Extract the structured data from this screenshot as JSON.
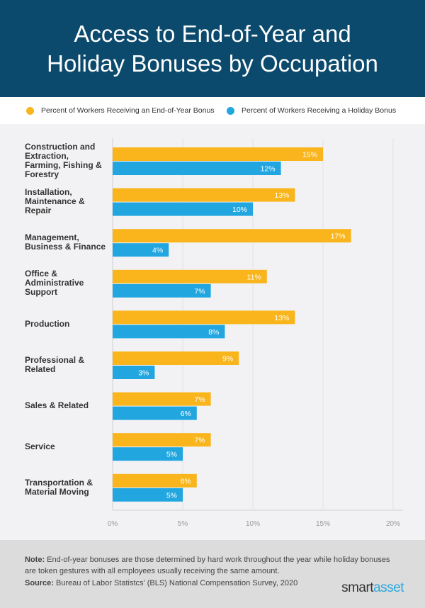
{
  "header": {
    "title_line1": "Access to End-of-Year and",
    "title_line2": "Holiday Bonuses by Occupation"
  },
  "colors": {
    "end_of_year": "#f9b51b",
    "holiday": "#21a6e0",
    "header_bg": "#0b4a6d"
  },
  "chart_data": {
    "type": "bar",
    "orientation": "horizontal",
    "categories": [
      "Construction and Extraction, Farming, Fishing & Forestry",
      "Installation, Maintenance & Repair",
      "Management, Business & Finance",
      "Office & Administrative Support",
      "Production",
      "Professional & Related",
      "Sales & Related",
      "Service",
      "Transportation & Material Moving"
    ],
    "series": [
      {
        "name": "Percent of Workers Receiving an End-of-Year Bonus",
        "values": [
          15,
          13,
          17,
          11,
          13,
          9,
          7,
          7,
          6
        ]
      },
      {
        "name": "Percent of Workers Receiving a Holiday Bonus",
        "values": [
          12,
          10,
          4,
          7,
          8,
          3,
          6,
          5,
          5
        ]
      }
    ],
    "xlim": [
      0,
      20
    ],
    "ticks": [
      "0%",
      "5%",
      "10%",
      "15%",
      "20%"
    ],
    "grid": true,
    "legend": "top",
    "value_suffix": "%"
  },
  "footer": {
    "note_label": "Note:",
    "note_text": " End-of-year bonuses are those determined by hard work throughout the year while holiday bonuses are token gestures with all employees usually receiving the same amount.",
    "source_label": "Source:",
    "source_text": " Bureau of Labor Statistcs' (BLS) National Compensation Survey, 2020",
    "logo_a": "smart",
    "logo_b": "asset"
  }
}
